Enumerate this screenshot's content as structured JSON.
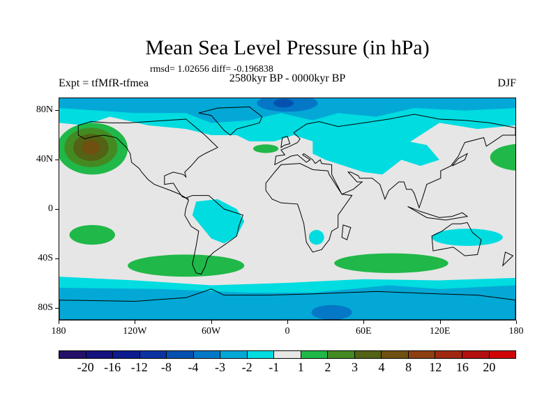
{
  "title": "Mean Sea Level Pressure (in hPa)",
  "stats": "rmsd= 1.02656 diff= -0.196838",
  "experiment": "Expt = tfMfR-tfmea",
  "period": "2580kyr BP - 0000kyr BP",
  "season": "DJF",
  "axes": {
    "lon_labels": [
      "180",
      "120W",
      "60W",
      "0",
      "60E",
      "120E",
      "180"
    ],
    "lon_values": [
      -180,
      -120,
      -60,
      0,
      60,
      120,
      180
    ],
    "lat_labels": [
      "80N",
      "40N",
      "0",
      "40S",
      "80S"
    ],
    "lat_values": [
      80,
      40,
      0,
      -40,
      -80
    ]
  },
  "colorbar": {
    "labels": [
      "-20",
      "-16",
      "-12",
      "-8",
      "-4",
      "-3",
      "-2",
      "-1",
      "1",
      "2",
      "3",
      "4",
      "8",
      "12",
      "16",
      "20"
    ],
    "colors": [
      "#24106a",
      "#14127e",
      "#0c1c8e",
      "#0a34a2",
      "#0450b0",
      "#0478c6",
      "#04a8d6",
      "#00dce0",
      "#e6e6e6",
      "#20b848",
      "#448a22",
      "#536214",
      "#705010",
      "#8c4010",
      "#a02810",
      "#b41010",
      "#d00404"
    ]
  }
}
